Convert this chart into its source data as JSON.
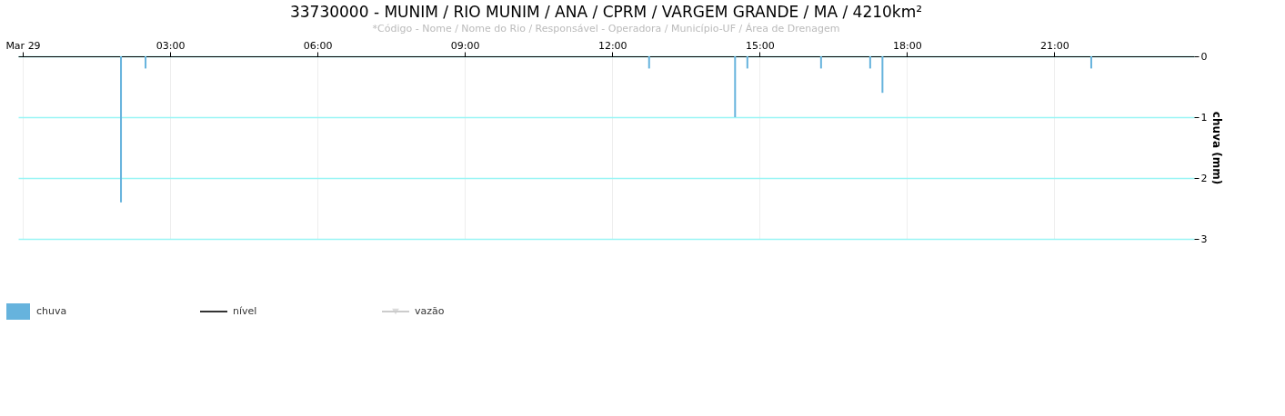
{
  "chart_data": {
    "type": "bar",
    "title": "33730000 - MUNIM / RIO MUNIM / ANA / CPRM / VARGEM GRANDE / MA / 4210km²",
    "subtitle": "*Código - Nome / Nome do Rio / Responsável - Operadora / Município-UF / Área de Drenagem",
    "ylabel": "chuva (mm)",
    "x": [
      2.0,
      2.5,
      12.75,
      14.5,
      14.75,
      16.25,
      17.25,
      17.5,
      21.75
    ],
    "series": [
      {
        "name": "chuva",
        "color": "#66b3dd",
        "values": [
          2.4,
          0.2,
          0.2,
          1.0,
          0.2,
          0.2,
          0.2,
          0.6,
          0.2
        ]
      },
      {
        "name": "nível",
        "type": "line",
        "color": "#333333",
        "marker": "none",
        "values": [
          null,
          null,
          null,
          null,
          null,
          null,
          null,
          null,
          null
        ]
      },
      {
        "name": "vazão",
        "type": "line",
        "color": "#cccccc",
        "marker": "triangle",
        "values": [
          null,
          null,
          null,
          null,
          null,
          null,
          null,
          null,
          null
        ]
      }
    ],
    "xlim": [
      0,
      23.75
    ],
    "xticks": [
      {
        "value": 0,
        "label": "Mar 29"
      },
      {
        "value": 3,
        "label": "03:00"
      },
      {
        "value": 6,
        "label": "06:00"
      },
      {
        "value": 9,
        "label": "09:00"
      },
      {
        "value": 12,
        "label": "12:00"
      },
      {
        "value": 15,
        "label": "15:00"
      },
      {
        "value": 18,
        "label": "18:00"
      },
      {
        "value": 21,
        "label": "21:00"
      }
    ],
    "ylim": [
      3,
      0
    ],
    "yticks": [
      0,
      1,
      2,
      3
    ],
    "grid": true,
    "legend": "bottom left"
  }
}
